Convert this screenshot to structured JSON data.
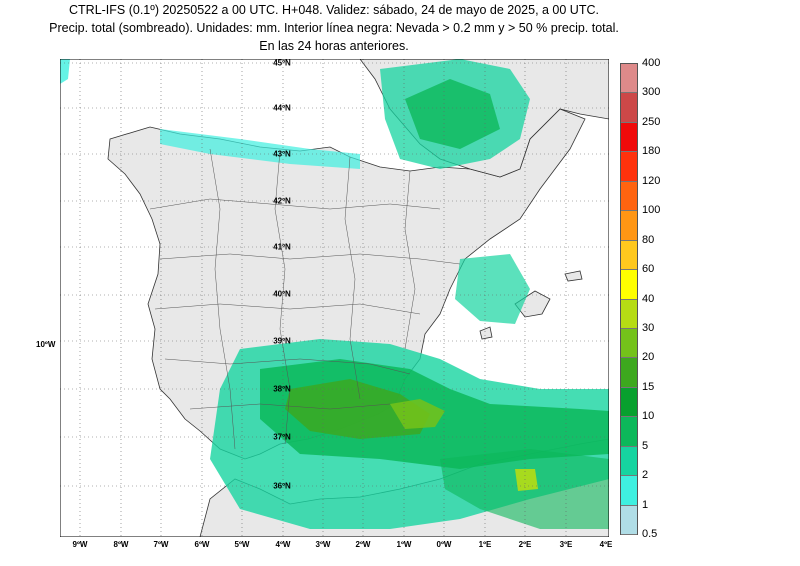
{
  "title": {
    "line1": "CTRL-IFS (0.1º) 20250522 a 00 UTC. H+048. Validez: sábado, 24 de mayo de 2025, a 00 UTC.",
    "line2": "Precip. total (sombreado). Unidades: mm. Interior línea negra: Nevada > 0.2 mm y > 50 % precip. total.",
    "line3": "En las 24 horas anteriores."
  },
  "lon_labels": [
    "9ºW",
    "8ºW",
    "7ºW",
    "6ºW",
    "5ºW",
    "4ºW",
    "3ºW",
    "2ºW",
    "1ºW",
    "0ºW",
    "1ºE",
    "2ºE",
    "3ºE",
    "4ºE"
  ],
  "side_label": "10ºW",
  "lat_labels": [
    "45ºN",
    "44ºN",
    "43ºN",
    "42ºN",
    "41ºN",
    "40ºN",
    "39ºN",
    "38ºN",
    "37ºN",
    "36ºN"
  ],
  "legend": {
    "values": [
      "0.5",
      "1",
      "2",
      "5",
      "10",
      "15",
      "20",
      "30",
      "40",
      "60",
      "80",
      "100",
      "120",
      "180",
      "250",
      "300",
      "400"
    ],
    "colors": [
      "#b0dde6",
      "#3ff0e0",
      "#16d4a0",
      "#0cb85a",
      "#08a02e",
      "#3da81e",
      "#74c21a",
      "#b6dc14",
      "#ffff00",
      "#ffc81e",
      "#ff9614",
      "#ff6410",
      "#ff320c",
      "#f00a0a",
      "#cc4848",
      "#de8a8a",
      "#f4c2c2"
    ]
  },
  "colors": {
    "land": "#e8e8e8",
    "sea": "#ffffff",
    "border": "#333333"
  }
}
